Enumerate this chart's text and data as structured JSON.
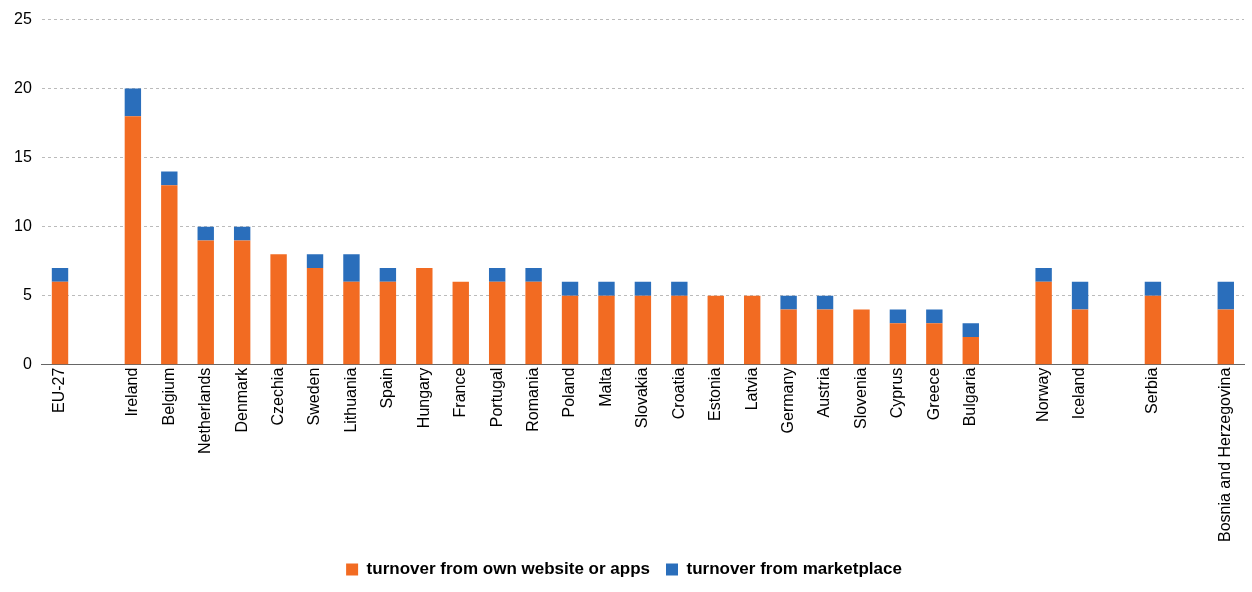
{
  "chart_data": {
    "type": "bar",
    "stacked": true,
    "categories": [
      "EU-27",
      null,
      "Ireland",
      "Belgium",
      "Netherlands",
      "Denmark",
      "Czechia",
      "Sweden",
      "Lithuania",
      "Spain",
      "Hungary",
      "France",
      "Portugal",
      "Romania",
      "Poland",
      "Malta",
      "Slovakia",
      "Croatia",
      "Estonia",
      "Latvia",
      "Germany",
      "Austria",
      "Slovenia",
      "Cyprus",
      "Greece",
      "Bulgaria",
      null,
      "Norway",
      "Iceland",
      null,
      "Serbia",
      null,
      "Bosnia and Herzegovina"
    ],
    "series": [
      {
        "name": "turnover from own website or apps",
        "color": "#f26b22",
        "values": [
          6,
          null,
          18,
          13,
          9,
          9,
          8,
          7,
          6,
          6,
          7,
          6,
          6,
          6,
          5,
          5,
          5,
          5,
          5,
          5,
          4,
          4,
          4,
          3,
          3,
          2,
          null,
          6,
          4,
          null,
          5,
          null,
          4
        ]
      },
      {
        "name": "turnover from marketplace",
        "color": "#2a6ebb",
        "values": [
          1,
          null,
          2,
          1,
          1,
          1,
          0,
          1,
          2,
          1,
          0,
          0,
          1,
          1,
          1,
          1,
          1,
          1,
          0,
          0,
          1,
          1,
          0,
          1,
          1,
          1,
          null,
          1,
          2,
          null,
          1,
          null,
          2
        ]
      }
    ],
    "ylim": [
      0,
      25
    ],
    "yticks": [
      0,
      5,
      10,
      15,
      20,
      25
    ],
    "grid": "y",
    "legend": "bottom"
  }
}
